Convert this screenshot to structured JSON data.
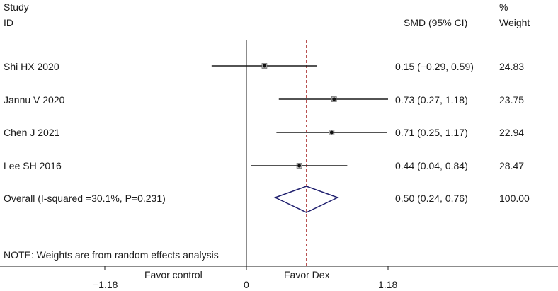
{
  "chart_data": {
    "type": "forest",
    "header": {
      "study_line1": "Study",
      "study_line2": "ID",
      "effect": "SMD (95% CI)",
      "weight_line1": "%",
      "weight_line2": "Weight"
    },
    "studies": [
      {
        "id": "Shi HX 2020",
        "est": 0.15,
        "lo": -0.29,
        "hi": 0.59,
        "ci_text": "0.15 (−0.29, 0.59)",
        "weight": "24.83"
      },
      {
        "id": "Jannu V 2020",
        "est": 0.73,
        "lo": 0.27,
        "hi": 1.18,
        "ci_text": "0.73 (0.27, 1.18)",
        "weight": "23.75"
      },
      {
        "id": "Chen J 2021",
        "est": 0.71,
        "lo": 0.25,
        "hi": 1.17,
        "ci_text": "0.71 (0.25, 1.17)",
        "weight": "22.94"
      },
      {
        "id": "Lee SH 2016",
        "est": 0.44,
        "lo": 0.04,
        "hi": 0.84,
        "ci_text": "0.44 (0.04, 0.84)",
        "weight": "28.47"
      }
    ],
    "overall": {
      "label": "Overall (I-squared =30.1%, P=0.231)",
      "est": 0.5,
      "lo": 0.24,
      "hi": 0.76,
      "ci_text": "0.50 (0.24, 0.76)",
      "weight": "100.00"
    },
    "note": "NOTE: Weights are from random effects analysis",
    "x_ticks": [
      -1.18,
      0,
      1.18
    ],
    "x_tick_labels": [
      "−1.18",
      "0",
      "1.18"
    ],
    "x_range": [
      -1.18,
      1.18
    ],
    "reference_value": 0,
    "favor_left": "Favor control",
    "favor_right": "Favor Dex",
    "colors": {
      "line": "#1a1a1a",
      "diamond": "#1f1f6e",
      "overall_line": "#a01818"
    }
  }
}
